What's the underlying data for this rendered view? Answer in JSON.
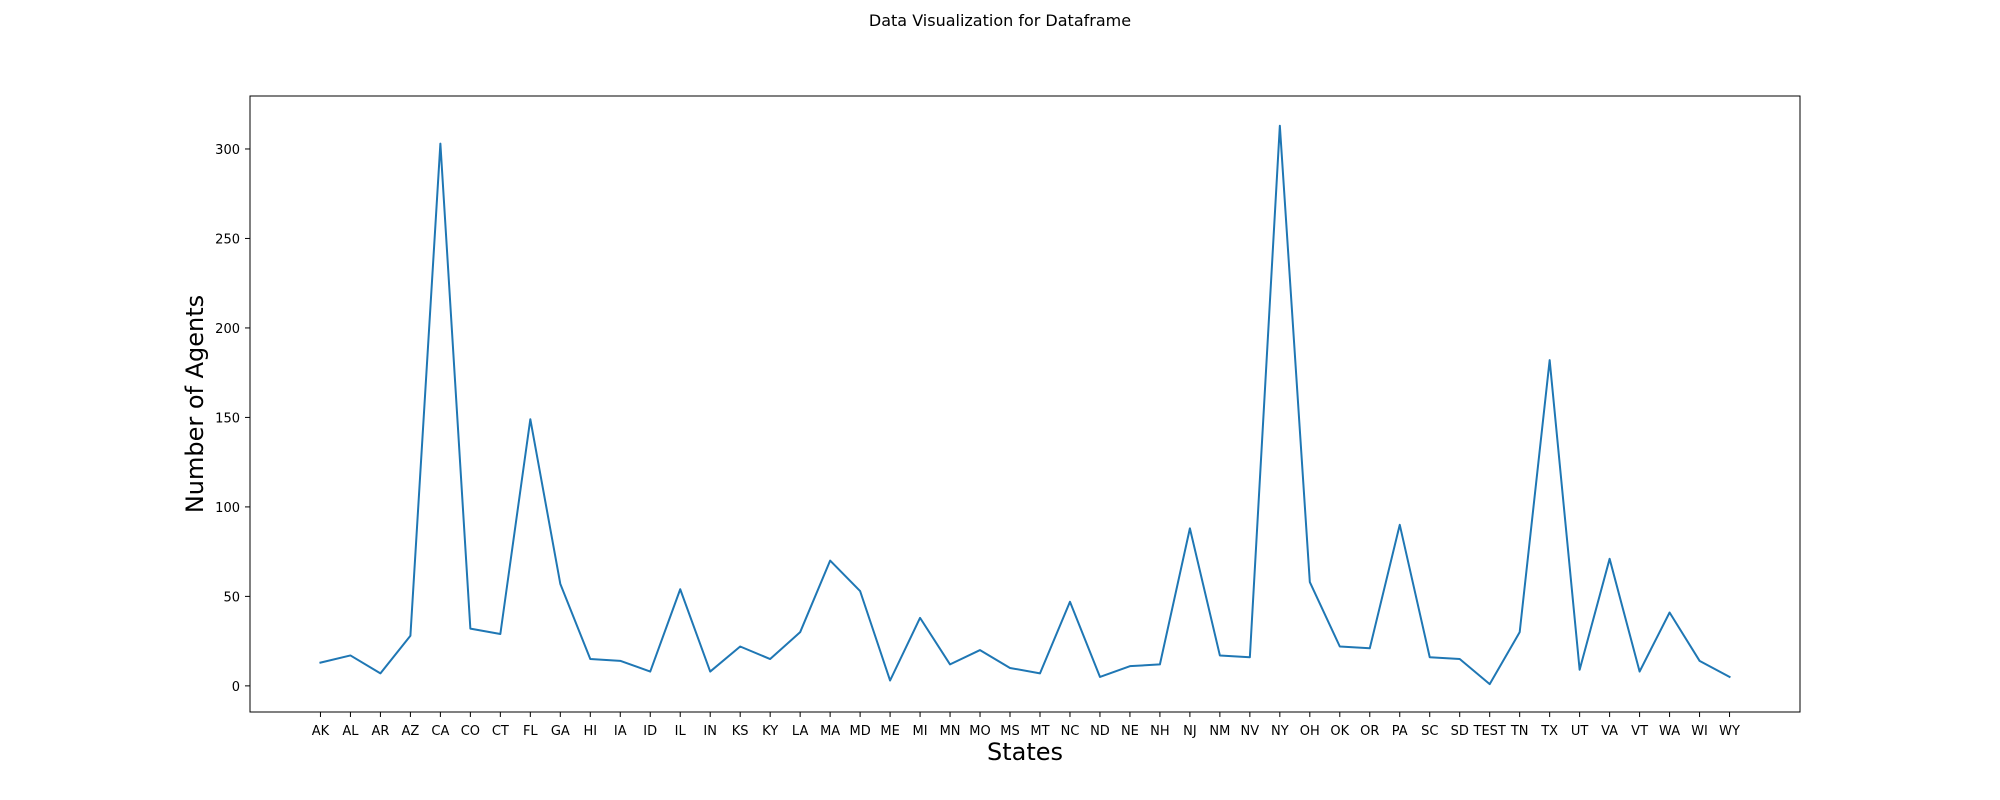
{
  "figure": {
    "title": "Data Visualization for Dataframe"
  },
  "chart_data": {
    "type": "line",
    "title": "",
    "xlabel": "States",
    "ylabel": "Number of Agents",
    "categories": [
      "AK",
      "AL",
      "AR",
      "AZ",
      "CA",
      "CO",
      "CT",
      "FL",
      "GA",
      "HI",
      "IA",
      "ID",
      "IL",
      "IN",
      "KS",
      "KY",
      "LA",
      "MA",
      "MD",
      "ME",
      "MI",
      "MN",
      "MO",
      "MS",
      "MT",
      "NC",
      "ND",
      "NE",
      "NH",
      "NJ",
      "NM",
      "NV",
      "NY",
      "OH",
      "OK",
      "OR",
      "PA",
      "SC",
      "SD",
      "TEST",
      "TN",
      "TX",
      "UT",
      "VA",
      "VT",
      "WA",
      "WI",
      "WY"
    ],
    "series": [
      {
        "values": [
          13,
          17,
          7,
          28,
          303,
          32,
          29,
          149,
          57,
          15,
          14,
          8,
          54,
          8,
          22,
          15,
          30,
          70,
          53,
          3,
          38,
          12,
          20,
          10,
          7,
          47,
          5,
          11,
          12,
          88,
          17,
          16,
          313,
          58,
          22,
          21,
          90,
          16,
          15,
          1,
          30,
          182,
          9,
          71,
          8,
          41,
          14,
          5
        ]
      }
    ],
    "yticks": [
      0,
      50,
      100,
      150,
      200,
      250,
      300
    ],
    "ylim": [
      -14.6,
      329.6
    ],
    "grid": false,
    "line_color": "#1f77b4"
  }
}
